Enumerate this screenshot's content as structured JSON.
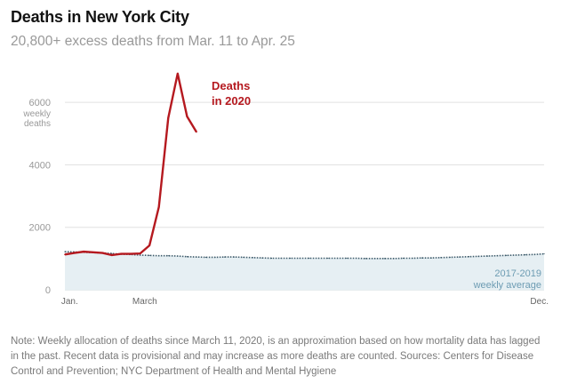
{
  "title": "Deaths in New York City",
  "subtitle": "20,800+ excess deaths from Mar. 11 to Apr. 25",
  "note": "Note: Weekly allocation of deaths since March 11, 2020, is an approximation based on how mortality data has lagged in the past. Recent data is provisional and may increase as more deaths are counted. Sources: Centers for Disease Control and Prevention; NYC Department of Health and Mental Hygiene",
  "chart_data": {
    "type": "line",
    "title": "Deaths in New York City",
    "ylabel": "weekly deaths",
    "ylabel_lines": [
      "weekly",
      "deaths"
    ],
    "ylim": [
      0,
      7000
    ],
    "xlim": [
      1,
      52
    ],
    "yticks": [
      0,
      2000,
      4000,
      6000
    ],
    "ytick_labels": [
      "0",
      "2000",
      "4000",
      "6000"
    ],
    "xticks": [
      {
        "week": 1.5,
        "label": "Jan."
      },
      {
        "week": 9.5,
        "label": "March"
      },
      {
        "week": 51.5,
        "label": "Dec."
      }
    ],
    "colors": {
      "deaths_2020": "#b5191f",
      "average_line": "#3c5a6a",
      "band": "#e6eff3",
      "band_edge": "#c8c8c8",
      "grid": "#e0e0e0"
    },
    "annotations": {
      "deaths_2020": [
        "Deaths",
        "in 2020"
      ],
      "average": [
        "2017-2019",
        "weekly average"
      ]
    },
    "series": [
      {
        "name": "Deaths in 2020",
        "x": [
          1,
          2,
          3,
          4,
          5,
          6,
          7,
          8,
          9,
          10,
          11,
          12,
          13,
          14,
          15,
          16,
          17
        ],
        "values": [
          1130,
          1180,
          1220,
          1200,
          1180,
          1110,
          1150,
          1150,
          1160,
          1420,
          2650,
          5500,
          6920,
          5550,
          5050,
          null,
          null
        ]
      },
      {
        "name": "2017-2019 weekly average",
        "x": [
          1,
          2,
          3,
          4,
          5,
          6,
          7,
          8,
          9,
          10,
          11,
          12,
          13,
          14,
          15,
          16,
          17,
          18,
          19,
          20,
          21,
          22,
          23,
          24,
          25,
          26,
          27,
          28,
          29,
          30,
          31,
          32,
          33,
          34,
          35,
          36,
          37,
          38,
          39,
          40,
          41,
          42,
          43,
          44,
          45,
          46,
          47,
          48,
          49,
          50,
          51,
          52
        ],
        "values": [
          1220,
          1210,
          1200,
          1190,
          1180,
          1160,
          1140,
          1130,
          1110,
          1100,
          1090,
          1090,
          1080,
          1060,
          1050,
          1040,
          1040,
          1050,
          1050,
          1040,
          1030,
          1020,
          1010,
          1010,
          1010,
          1010,
          1010,
          1010,
          1010,
          1010,
          1010,
          1010,
          1000,
          1000,
          1000,
          1000,
          1010,
          1010,
          1020,
          1020,
          1030,
          1040,
          1050,
          1060,
          1070,
          1080,
          1090,
          1100,
          1110,
          1120,
          1130,
          1150
        ]
      }
    ]
  }
}
